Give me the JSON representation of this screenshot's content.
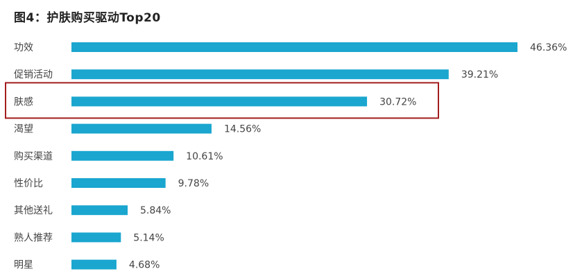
{
  "chart_data": {
    "type": "bar",
    "orientation": "horizontal",
    "title": "图4：护肤购买驱动Top20",
    "categories": [
      "功效",
      "促销活动",
      "肤感",
      "渴望",
      "购买渠道",
      "性价比",
      "其他送礼",
      "熟人推荐",
      "明星"
    ],
    "values": [
      46.36,
      39.21,
      30.72,
      14.56,
      10.61,
      9.78,
      5.84,
      5.14,
      4.68
    ],
    "value_labels": [
      "46.36%",
      "39.21%",
      "30.72%",
      "14.56%",
      "10.61%",
      "9.78%",
      "5.84%",
      "5.14%",
      "4.68%"
    ],
    "highlighted_category": "肤感",
    "grid": false,
    "legend": "none",
    "xlabel": "",
    "ylabel": ""
  },
  "colors": {
    "bar": "#1aa6cf",
    "highlight_box": "#a31c1c"
  }
}
